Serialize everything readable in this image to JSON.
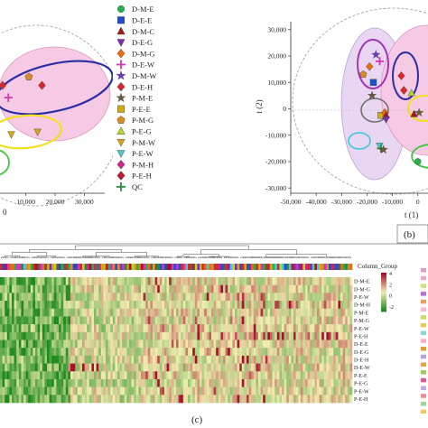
{
  "panel_labels": {
    "b": "(b)",
    "c": "(c)"
  },
  "axis_texts": {
    "left_x_tail": "0",
    "right_y_label": "t (2)",
    "right_x_label": "t (1)",
    "column_group_label": "Column_Group"
  },
  "colors": {
    "pink_region": "#f6c9e4",
    "yellow_region": "#f3df19",
    "blue_region": "#2b2fa5",
    "purple_region": "#a236b8",
    "heatmap_green": "#1e8a1e",
    "heatmap_red": "#a3122a",
    "heatmap_mid": "#f2edb0"
  },
  "legend": [
    {
      "label": "D-M-E",
      "shape": "circle",
      "color": "#22b14c"
    },
    {
      "label": "D-E-E",
      "shape": "square",
      "color": "#1f4fd0"
    },
    {
      "label": "D-M-C",
      "shape": "triangle-up",
      "color": "#a01818"
    },
    {
      "label": "D-E-G",
      "shape": "triangle-down",
      "color": "#7a2fb5"
    },
    {
      "label": "D-M-G",
      "shape": "diamond",
      "color": "#e86d13"
    },
    {
      "label": "D-E-W",
      "shape": "plus",
      "color": "#d436b4"
    },
    {
      "label": "D-M-W",
      "shape": "star",
      "color": "#6e38c2"
    },
    {
      "label": "D-E-H",
      "shape": "diamond",
      "color": "#d42a2a"
    },
    {
      "label": "P-M-E",
      "shape": "star",
      "color": "#6b5a3a"
    },
    {
      "label": "P-E-E",
      "shape": "square",
      "color": "#d7a71a"
    },
    {
      "label": "P-M-G",
      "shape": "pentagon",
      "color": "#d98a2a"
    },
    {
      "label": "P-E-G",
      "shape": "triangle-up",
      "color": "#b4d82a"
    },
    {
      "label": "P-M-W",
      "shape": "triangle-down",
      "color": "#d6a51c"
    },
    {
      "label": "P-E-W",
      "shape": "triangle-down",
      "color": "#50c8d0"
    },
    {
      "label": "P-M-H",
      "shape": "diamond",
      "color": "#c72a8a"
    },
    {
      "label": "P-E-H",
      "shape": "diamond",
      "color": "#c0182e"
    },
    {
      "label": "QC",
      "shape": "plus",
      "color": "#2a8a3a"
    }
  ],
  "heatmap_row_labels": [
    "D-M-E",
    "D-M-G",
    "P-E-W",
    "D-M-H",
    "P-M-E",
    "P-M-G",
    "P-E-W",
    "P-E-H",
    "D-E-E",
    "D-E-G",
    "D-E-H",
    "D-E-W",
    "P-E-E",
    "P-E-G",
    "P-E-W",
    "P-E-H"
  ],
  "colorbar_ticks": [
    "4",
    "2",
    "0",
    "-2"
  ],
  "chart_data": [
    {
      "type": "scatter",
      "panel": "(a)",
      "xlabel": "",
      "ylabel": "",
      "xticks": [
        "10,000",
        "20,000",
        "30,000"
      ],
      "x_tick_values": [
        10000,
        20000,
        30000
      ],
      "xlim": [
        -10000,
        37000
      ],
      "ylim": [
        -35000,
        35000
      ],
      "grid": false,
      "legend_placement": "right",
      "points": [
        {
          "group": "D-E-H",
          "x": -6000,
          "y": 15000
        },
        {
          "group": "D-E-H",
          "x": -3000,
          "y": 10500
        },
        {
          "group": "D-E-H",
          "x": 2000,
          "y": 9000
        },
        {
          "group": "P-M-G",
          "x": 11000,
          "y": 12500
        },
        {
          "group": "D-E-H",
          "x": 15500,
          "y": 9000
        },
        {
          "group": "D-E-W",
          "x": -1000,
          "y": 7500
        },
        {
          "group": "D-E-W",
          "x": 4000,
          "y": 4000
        },
        {
          "group": "D-E-H",
          "x": -8000,
          "y": 6000
        },
        {
          "group": "P-E-G",
          "x": -8500,
          "y": -1000
        },
        {
          "group": "P-M-W",
          "x": -2500,
          "y": -3500
        },
        {
          "group": "P-M-W",
          "x": 5000,
          "y": -11000
        },
        {
          "group": "P-M-W",
          "x": 14000,
          "y": -10000
        },
        {
          "group": "P-E-G",
          "x": -9000,
          "y": -8500
        }
      ]
    },
    {
      "type": "scatter",
      "panel": "(b)",
      "xlabel": "t (1)",
      "ylabel": "t (2)",
      "xticks": [
        "-50,000",
        "-40,000",
        "-30,000",
        "-20,000",
        "-10,000",
        "0"
      ],
      "x_tick_values": [
        -50000,
        -40000,
        -30000,
        -20000,
        -10000,
        0
      ],
      "yticks": [
        "30,000",
        "20,000",
        "10,000",
        "0",
        "-10,000",
        "-20,000",
        "-30,000"
      ],
      "y_tick_values": [
        30000,
        20000,
        10000,
        0,
        -10000,
        -20000,
        -30000
      ],
      "xlim": [
        -50000,
        4000
      ],
      "ylim": [
        -32000,
        33000
      ],
      "grid": false,
      "points": [
        {
          "group": "D-M-W",
          "x": -16500,
          "y": 20500
        },
        {
          "group": "D-E-W",
          "x": -15000,
          "y": 18000
        },
        {
          "group": "D-M-G",
          "x": -19000,
          "y": 16000
        },
        {
          "group": "P-M-G",
          "x": -21500,
          "y": 13000
        },
        {
          "group": "D-E-E",
          "x": -17500,
          "y": 10000
        },
        {
          "group": "P-M-E",
          "x": -18000,
          "y": 5000
        },
        {
          "group": "D-E-H",
          "x": -6500,
          "y": 12500
        },
        {
          "group": "D-E-H",
          "x": -5500,
          "y": 7000
        },
        {
          "group": "P-E-G",
          "x": -2500,
          "y": 6000
        },
        {
          "group": "P-E-E",
          "x": -14500,
          "y": -2500
        },
        {
          "group": "D-M-G",
          "x": -13000,
          "y": -1500
        },
        {
          "group": "D-M-C",
          "x": -12500,
          "y": -2500
        },
        {
          "group": "D-E-G",
          "x": -12500,
          "y": -4000
        },
        {
          "group": "D-M-C",
          "x": -1500,
          "y": -2000
        },
        {
          "group": "P-M-E",
          "x": 500,
          "y": -1500
        },
        {
          "group": "P-E-W",
          "x": -15000,
          "y": -14000
        },
        {
          "group": "QC",
          "x": -14500,
          "y": -15000
        },
        {
          "group": "P-M-E",
          "x": -13500,
          "y": -15500
        },
        {
          "group": "D-M-E",
          "x": 0,
          "y": -20000
        }
      ]
    },
    {
      "type": "heatmap",
      "panel": "(c)",
      "column_annotation": "Column_Group",
      "rows": [
        "D-M-E",
        "D-M-G",
        "P-E-W",
        "D-M-H",
        "P-M-E",
        "P-M-G",
        "P-E-W",
        "P-E-H",
        "D-E-E",
        "D-E-G",
        "D-E-H",
        "D-E-W",
        "P-E-E",
        "P-E-G",
        "P-E-W",
        "P-E-H"
      ],
      "colorbar": {
        "min": -3,
        "max": 4,
        "ticks": [
          4,
          2,
          0,
          -2
        ]
      }
    }
  ]
}
